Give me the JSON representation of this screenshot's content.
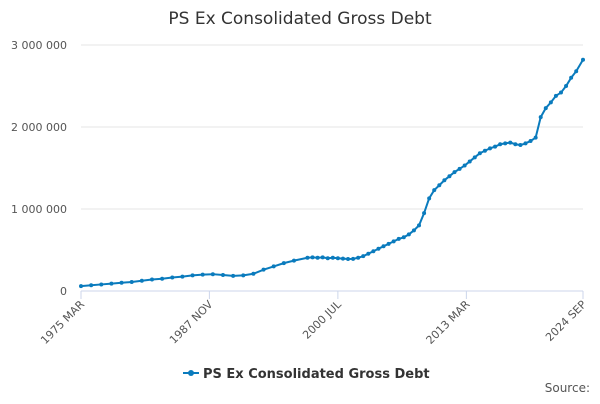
{
  "chart_data": {
    "type": "line",
    "title": "PS Ex Consolidated Gross Debt",
    "source": "Source:",
    "xlim": [
      1975.17,
      2024.67
    ],
    "xticks": [
      {
        "value": 1975.17,
        "label": "1975 MAR"
      },
      {
        "value": 1987.83,
        "label": "1987 NOV"
      },
      {
        "value": 2000.5,
        "label": "2000 JUL"
      },
      {
        "value": 2013.17,
        "label": "2013 MAR"
      },
      {
        "value": 2024.67,
        "label": "2024 SEP"
      }
    ],
    "ylim": [
      0,
      3000000
    ],
    "yticks": [
      0,
      {
        "value": 1000000,
        "label": "1 000 000"
      },
      {
        "value": 2000000,
        "label": "2 000 000"
      },
      {
        "value": 3000000,
        "label": "3 000 000"
      }
    ],
    "grid": true,
    "legend": "bottom",
    "x": [
      1975.17,
      1976.17,
      1977.17,
      1978.17,
      1979.17,
      1980.17,
      1981.17,
      1982.17,
      1983.17,
      1984.17,
      1985.17,
      1986.17,
      1987.17,
      1988.17,
      1989.17,
      1990.17,
      1991.17,
      1992.17,
      1993.17,
      1994.17,
      1995.17,
      1996.17,
      1997.5,
      1998,
      1998.5,
      1999,
      1999.5,
      2000,
      2000.5,
      2001,
      2001.5,
      2002,
      2002.5,
      2003,
      2003.5,
      2004,
      2004.5,
      2005,
      2005.5,
      2006,
      2006.5,
      2007,
      2007.5,
      2008,
      2008.5,
      2009,
      2009.5,
      2010,
      2010.5,
      2011,
      2011.5,
      2012,
      2012.5,
      2013,
      2013.5,
      2014,
      2014.5,
      2015,
      2015.5,
      2016,
      2016.5,
      2017,
      2017.5,
      2018,
      2018.5,
      2019,
      2019.5,
      2020,
      2020.5,
      2021,
      2021.5,
      2022,
      2022.5,
      2023,
      2023.5,
      2024,
      2024.67
    ],
    "series": [
      {
        "name": "PS Ex Consolidated Gross Debt",
        "color": "#0a7bbd",
        "values": [
          60000,
          70000,
          80000,
          90000,
          100000,
          110000,
          125000,
          140000,
          150000,
          165000,
          175000,
          190000,
          200000,
          205000,
          195000,
          185000,
          190000,
          210000,
          260000,
          300000,
          340000,
          370000,
          405000,
          410000,
          405000,
          410000,
          400000,
          405000,
          400000,
          395000,
          390000,
          392000,
          405000,
          425000,
          455000,
          485000,
          515000,
          545000,
          575000,
          605000,
          635000,
          655000,
          690000,
          740000,
          800000,
          950000,
          1130000,
          1230000,
          1290000,
          1350000,
          1400000,
          1450000,
          1490000,
          1530000,
          1580000,
          1630000,
          1680000,
          1710000,
          1740000,
          1760000,
          1790000,
          1800000,
          1810000,
          1790000,
          1780000,
          1800000,
          1830000,
          1870000,
          2120000,
          2230000,
          2300000,
          2380000,
          2420000,
          2500000,
          2600000,
          2680000,
          2820000
        ]
      }
    ]
  }
}
